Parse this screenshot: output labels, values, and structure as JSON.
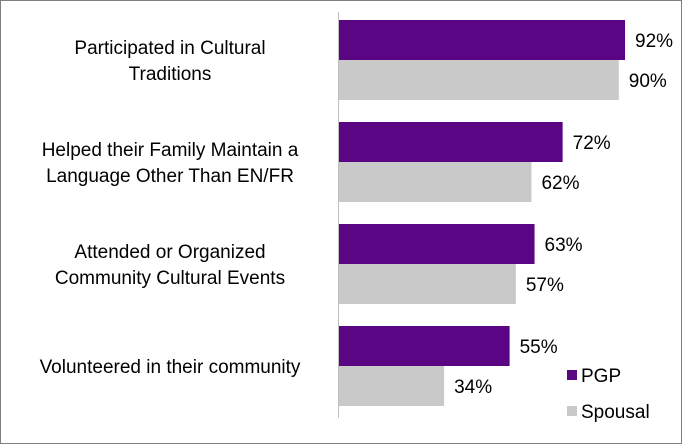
{
  "chart_data": {
    "type": "bar",
    "orientation": "horizontal",
    "categories": [
      [
        "Participated in Cultural",
        "Traditions"
      ],
      [
        "Helped their Family Maintain a",
        "Language Other Than EN/FR"
      ],
      [
        "Attended or Organized",
        "Community Cultural Events"
      ],
      [
        "Volunteered in their community"
      ]
    ],
    "series": [
      {
        "name": "PGP",
        "values": [
          92,
          72,
          63,
          55
        ],
        "labels": [
          "92%",
          "72%",
          "63%",
          "55%"
        ],
        "color": "#5a0584"
      },
      {
        "name": "Spousal",
        "values": [
          90,
          62,
          57,
          34
        ],
        "labels": [
          "90%",
          "62%",
          "57%",
          "34%"
        ],
        "color": "#c9c9c9"
      }
    ],
    "xlim": [
      0,
      100
    ],
    "grid": false,
    "legend_position": "bottom-right",
    "title": "",
    "xlabel": "",
    "ylabel": ""
  }
}
